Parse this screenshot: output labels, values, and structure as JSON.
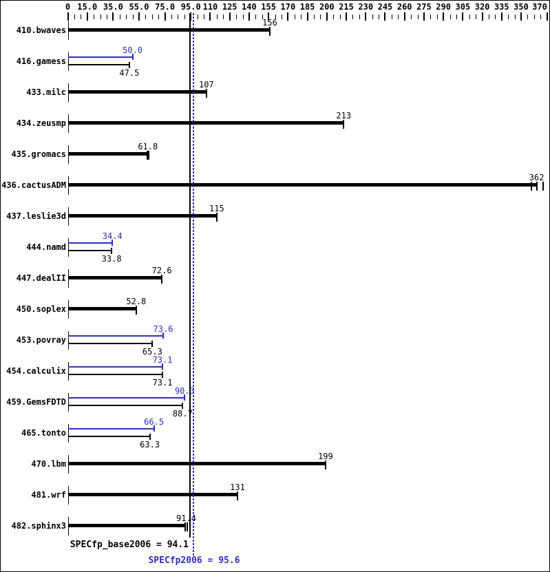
{
  "chart_data": {
    "type": "bar",
    "orientation": "horizontal",
    "title": "",
    "xlabel": "",
    "ylabel": "",
    "xlim": [
      0,
      370
    ],
    "grid": false,
    "axis": {
      "minor_tick_step": 5,
      "major_ticks": [
        {
          "value": 0,
          "label": "0"
        },
        {
          "value": 15,
          "label": "15.0"
        },
        {
          "value": 35,
          "label": "35.0"
        },
        {
          "value": 55,
          "label": "55.0"
        },
        {
          "value": 75,
          "label": "75.0"
        },
        {
          "value": 95,
          "label": "95.0"
        },
        {
          "value": 110,
          "label": "110"
        },
        {
          "value": 125,
          "label": "125"
        },
        {
          "value": 140,
          "label": "140"
        },
        {
          "value": 155,
          "label": "155"
        },
        {
          "value": 170,
          "label": "170"
        },
        {
          "value": 185,
          "label": "185"
        },
        {
          "value": 200,
          "label": "200"
        },
        {
          "value": 215,
          "label": "215"
        },
        {
          "value": 230,
          "label": "230"
        },
        {
          "value": 245,
          "label": "245"
        },
        {
          "value": 260,
          "label": "260"
        },
        {
          "value": 275,
          "label": "275"
        },
        {
          "value": 290,
          "label": "290"
        },
        {
          "value": 305,
          "label": "305"
        },
        {
          "value": 320,
          "label": "320"
        },
        {
          "value": 335,
          "label": "335"
        },
        {
          "value": 350,
          "label": "350"
        },
        {
          "value": 370,
          "label": "370"
        }
      ]
    },
    "series_legend": {
      "base": "SPECfp_base2006 (black bars)",
      "peak": "SPECfp2006 (blue bars)"
    },
    "benchmarks": [
      {
        "name": "410.bwaves",
        "base": 156,
        "base_label": "156"
      },
      {
        "name": "416.gamess",
        "base": 47.5,
        "base_label": "47.5",
        "peak": 50.0,
        "peak_label": "50.0"
      },
      {
        "name": "433.milc",
        "base": 107,
        "base_label": "107"
      },
      {
        "name": "434.zeusmp",
        "base": 213,
        "base_label": "213"
      },
      {
        "name": "435.gromacs",
        "base": 61.8,
        "base_label": "61.8",
        "run_caps": [
          61.2,
          62.4
        ]
      },
      {
        "name": "436.cactusADM",
        "base": 362,
        "base_label": "362",
        "run_caps": [
          358,
          362,
          366.8
        ]
      },
      {
        "name": "437.leslie3d",
        "base": 115,
        "base_label": "115"
      },
      {
        "name": "444.namd",
        "base": 33.8,
        "base_label": "33.8",
        "peak": 34.4,
        "peak_label": "34.4"
      },
      {
        "name": "447.dealII",
        "base": 72.6,
        "base_label": "72.6"
      },
      {
        "name": "450.soplex",
        "base": 52.8,
        "base_label": "52.8"
      },
      {
        "name": "453.povray",
        "base": 65.3,
        "base_label": "65.3",
        "peak": 73.6,
        "peak_label": "73.6"
      },
      {
        "name": "454.calculix",
        "base": 73.1,
        "base_label": "73.1",
        "peak": 73.1,
        "peak_label": "73.1"
      },
      {
        "name": "459.GemsFDTD",
        "base": 88.7,
        "base_label": "88.7",
        "peak": 90.3,
        "peak_label": "90.3"
      },
      {
        "name": "465.tonto",
        "base": 63.3,
        "base_label": "63.3",
        "peak": 66.5,
        "peak_label": "66.5"
      },
      {
        "name": "470.lbm",
        "base": 199,
        "base_label": "199"
      },
      {
        "name": "481.wrf",
        "base": 131,
        "base_label": "131"
      },
      {
        "name": "482.sphinx3",
        "base": 91.4,
        "base_label": "91.4",
        "run_caps": [
          90.8,
          92.1
        ]
      }
    ],
    "medians": {
      "base_value": 94.1,
      "base_label": "SPECfp_base2006 = 94.1",
      "peak_value": 95.6,
      "peak_label": "SPECfp2006 = 95.6"
    },
    "colors": {
      "black": "#000000",
      "blue": "#2e2ebc"
    }
  }
}
